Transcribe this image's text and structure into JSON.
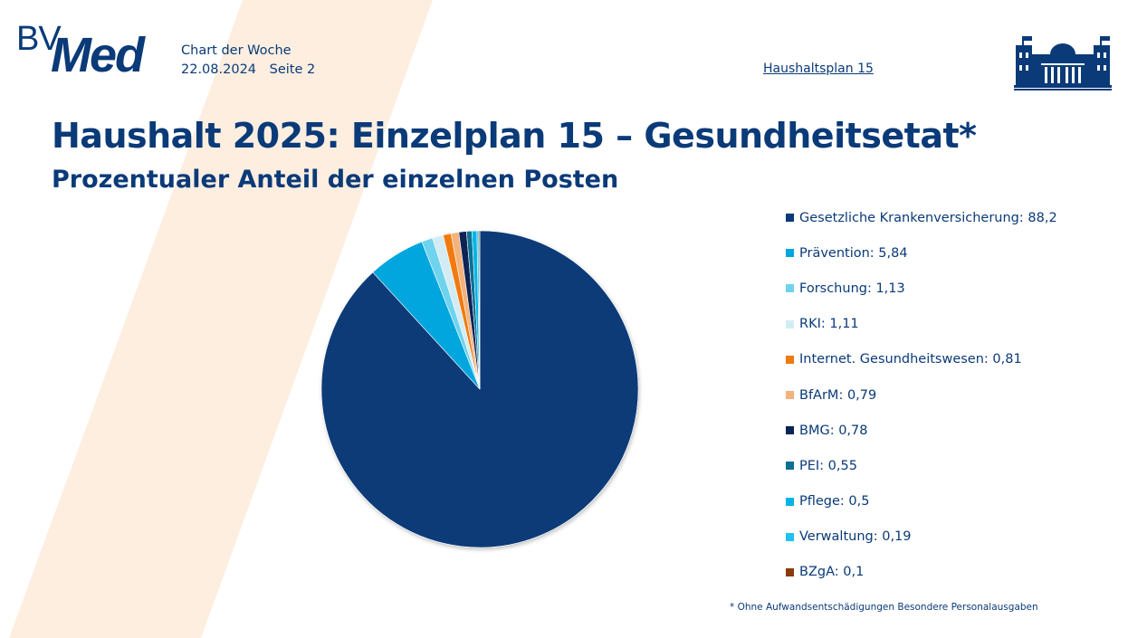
{
  "header": {
    "logo_bv": "BV",
    "logo_med": "Med",
    "label": "Chart der Woche",
    "date": "22.08.2024",
    "page": "Seite 2",
    "link": "Haushaltsplan 15"
  },
  "colors": {
    "primary": "#0a3a78",
    "band": "#fdeee0"
  },
  "chart_data": {
    "type": "pie",
    "title": "Haushalt 2025: Einzelplan 15 – Gesundheitsetat*",
    "subtitle": "Prozentualer Anteil der einzelnen Posten",
    "legend_position": "right",
    "unit": "%",
    "slices": [
      {
        "label": "Gesetzliche Krankenversicherung",
        "value": 88.2,
        "value_text": "88,2",
        "color": "#0a3a78"
      },
      {
        "label": "Prävention",
        "value": 5.84,
        "value_text": "5,84",
        "color": "#00a6dd"
      },
      {
        "label": "Forschung",
        "value": 1.13,
        "value_text": "1,13",
        "color": "#6fd3ee"
      },
      {
        "label": "RKI",
        "value": 1.11,
        "value_text": "1,11",
        "color": "#d3ecf4"
      },
      {
        "label": "Internet. Gesundheitswesen",
        "value": 0.81,
        "value_text": "0,81",
        "color": "#f07a10"
      },
      {
        "label": "BfArM",
        "value": 0.79,
        "value_text": "0,79",
        "color": "#f4b27c"
      },
      {
        "label": "BMG",
        "value": 0.78,
        "value_text": "0,78",
        "color": "#0b2455"
      },
      {
        "label": "PEI",
        "value": 0.55,
        "value_text": "0,55",
        "color": "#0e6f94"
      },
      {
        "label": "Pflege",
        "value": 0.5,
        "value_text": "0,5",
        "color": "#00b5e5"
      },
      {
        "label": "Verwaltung",
        "value": 0.19,
        "value_text": "0,19",
        "color": "#1ec2f0"
      },
      {
        "label": "BZgA",
        "value": 0.1,
        "value_text": "0,1",
        "color": "#8b3a0a"
      }
    ]
  },
  "footnote": "* Ohne Aufwandsentschädigungen Besondere Personalausgaben"
}
